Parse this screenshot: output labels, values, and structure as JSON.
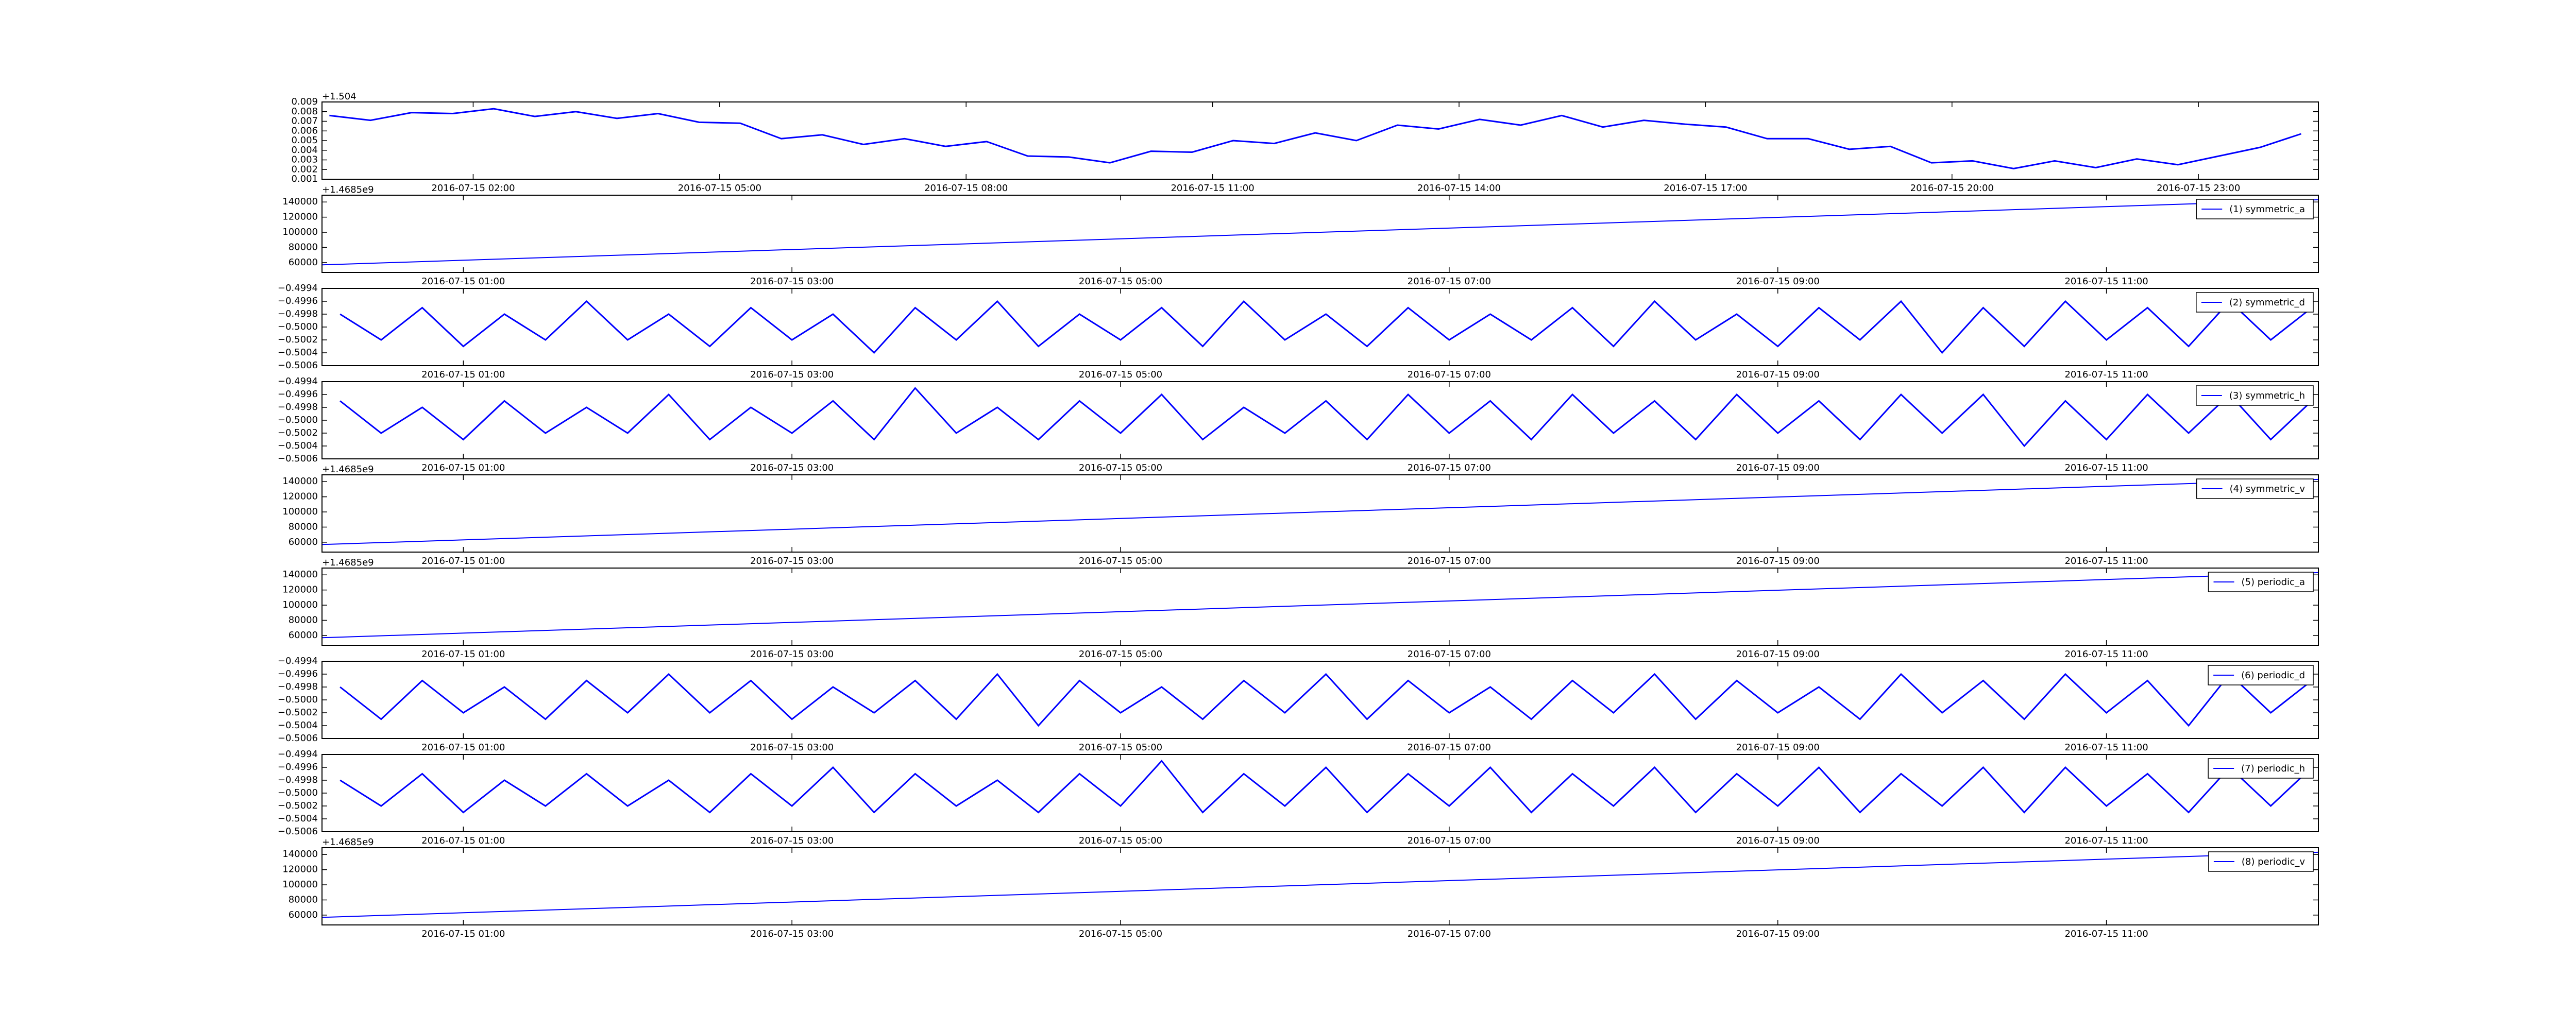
{
  "chart_data": [
    {
      "type": "line",
      "y_offset_label": "+1.504",
      "color": "#0000ff",
      "x": [
        0.25,
        0.75,
        1.25,
        1.75,
        2.25,
        2.75,
        3.25,
        3.75,
        4.25,
        4.75,
        5.25,
        5.75,
        6.25,
        6.75,
        7.25,
        7.75,
        8.25,
        8.75,
        9.25,
        9.75,
        10.25,
        10.75,
        11.25,
        11.75,
        12.25,
        12.75,
        13.25,
        13.75,
        14.25,
        14.75,
        15.25,
        15.75,
        16.25,
        16.75,
        17.25,
        17.75,
        18.25,
        18.75,
        19.25,
        19.75,
        20.25,
        20.75,
        21.25,
        21.75,
        22.25,
        22.75,
        23.25,
        23.75,
        24.25
      ],
      "values": [
        0.0076,
        0.0071,
        0.0079,
        0.0078,
        0.0083,
        0.0075,
        0.008,
        0.0073,
        0.0078,
        0.0069,
        0.0068,
        0.0052,
        0.0056,
        0.0046,
        0.0052,
        0.0044,
        0.0049,
        0.0034,
        0.0033,
        0.0027,
        0.0039,
        0.0038,
        0.005,
        0.0047,
        0.0058,
        0.005,
        0.0066,
        0.0062,
        0.0072,
        0.0066,
        0.0076,
        0.0064,
        0.0071,
        0.0067,
        0.0064,
        0.0052,
        0.0052,
        0.0041,
        0.0044,
        0.0027,
        0.0029,
        0.0021,
        0.0029,
        0.0022,
        0.0031,
        0.0025,
        0.0034,
        0.0043,
        0.0057
      ],
      "xlim": [
        0.16,
        24.46
      ],
      "ylim": [
        0.001,
        0.009
      ],
      "yticks": [
        0.001,
        0.002,
        0.003,
        0.004,
        0.005,
        0.006,
        0.007,
        0.008,
        0.009
      ],
      "xticks": [
        {
          "value": 2,
          "label": "2016-07-15 02:00"
        },
        {
          "value": 5,
          "label": "2016-07-15 05:00"
        },
        {
          "value": 8,
          "label": "2016-07-15 08:00"
        },
        {
          "value": 11,
          "label": "2016-07-15 11:00"
        },
        {
          "value": 14,
          "label": "2016-07-15 14:00"
        },
        {
          "value": 17,
          "label": "2016-07-15 17:00"
        },
        {
          "value": 20,
          "label": "2016-07-15 20:00"
        },
        {
          "value": 23,
          "label": "2016-07-15 23:00"
        }
      ]
    },
    {
      "type": "line",
      "y_offset_label": "+1.4685e9",
      "x": [
        0.14,
        12.29
      ],
      "series": [
        {
          "name": "(1) symmetric_a",
          "color": "#0000ff",
          "values": [
            57000,
            143000
          ]
        }
      ],
      "xlim": [
        0.14,
        12.29
      ],
      "ylim": [
        47000,
        149000
      ],
      "yticks": [
        60000,
        80000,
        100000,
        120000,
        140000
      ],
      "xticks": [
        {
          "value": 1,
          "label": "2016-07-15 01:00"
        },
        {
          "value": 3,
          "label": "2016-07-15 03:00"
        },
        {
          "value": 5,
          "label": "2016-07-15 05:00"
        },
        {
          "value": 7,
          "label": "2016-07-15 07:00"
        },
        {
          "value": 9,
          "label": "2016-07-15 09:00"
        },
        {
          "value": 11,
          "label": "2016-07-15 11:00"
        }
      ]
    },
    {
      "type": "line",
      "x": [
        0.25,
        0.5,
        0.75,
        1,
        1.25,
        1.5,
        1.75,
        2,
        2.25,
        2.5,
        2.75,
        3,
        3.25,
        3.5,
        3.75,
        4,
        4.25,
        4.5,
        4.75,
        5,
        5.25,
        5.5,
        5.75,
        6,
        6.25,
        6.5,
        6.75,
        7,
        7.25,
        7.5,
        7.75,
        8,
        8.25,
        8.5,
        8.75,
        9,
        9.25,
        9.5,
        9.75,
        10,
        10.25,
        10.5,
        10.75,
        11,
        11.25,
        11.5,
        11.75,
        12,
        12.25
      ],
      "series": [
        {
          "name": "(2) symmetric_d",
          "color": "#0000ff",
          "values": [
            -0.4998,
            -0.5002,
            -0.4997,
            -0.5003,
            -0.4998,
            -0.5002,
            -0.4996,
            -0.5002,
            -0.4998,
            -0.5003,
            -0.4997,
            -0.5002,
            -0.4998,
            -0.5004,
            -0.4997,
            -0.5002,
            -0.4996,
            -0.5003,
            -0.4998,
            -0.5002,
            -0.4997,
            -0.5003,
            -0.4996,
            -0.5002,
            -0.4998,
            -0.5003,
            -0.4997,
            -0.5002,
            -0.4998,
            -0.5002,
            -0.4997,
            -0.5003,
            -0.4996,
            -0.5002,
            -0.4998,
            -0.5003,
            -0.4997,
            -0.5002,
            -0.4996,
            -0.5004,
            -0.4997,
            -0.5003,
            -0.4996,
            -0.5002,
            -0.4997,
            -0.5003,
            -0.4996,
            -0.5002,
            -0.4997
          ]
        }
      ],
      "xlim": [
        0.14,
        12.29
      ],
      "ylim": [
        -0.5006,
        -0.4994
      ],
      "yticks": [
        {
          "value": -0.5006,
          "label": "−0.5006"
        },
        {
          "value": -0.5004,
          "label": "−0.5004"
        },
        {
          "value": -0.5002,
          "label": "−0.5002"
        },
        {
          "value": -0.5,
          "label": "−0.5000"
        },
        {
          "value": -0.4998,
          "label": "−0.4998"
        },
        {
          "value": -0.4996,
          "label": "−0.4996"
        },
        {
          "value": -0.4994,
          "label": "−0.4994"
        }
      ],
      "xticks": [
        {
          "value": 1,
          "label": "2016-07-15 01:00"
        },
        {
          "value": 3,
          "label": "2016-07-15 03:00"
        },
        {
          "value": 5,
          "label": "2016-07-15 05:00"
        },
        {
          "value": 7,
          "label": "2016-07-15 07:00"
        },
        {
          "value": 9,
          "label": "2016-07-15 09:00"
        },
        {
          "value": 11,
          "label": "2016-07-15 11:00"
        }
      ]
    },
    {
      "type": "line",
      "x": [
        0.25,
        0.5,
        0.75,
        1,
        1.25,
        1.5,
        1.75,
        2,
        2.25,
        2.5,
        2.75,
        3,
        3.25,
        3.5,
        3.75,
        4,
        4.25,
        4.5,
        4.75,
        5,
        5.25,
        5.5,
        5.75,
        6,
        6.25,
        6.5,
        6.75,
        7,
        7.25,
        7.5,
        7.75,
        8,
        8.25,
        8.5,
        8.75,
        9,
        9.25,
        9.5,
        9.75,
        10,
        10.25,
        10.5,
        10.75,
        11,
        11.25,
        11.5,
        11.75,
        12,
        12.25
      ],
      "series": [
        {
          "name": "(3) symmetric_h",
          "color": "#0000ff",
          "values": [
            -0.4997,
            -0.5002,
            -0.4998,
            -0.5003,
            -0.4997,
            -0.5002,
            -0.4998,
            -0.5002,
            -0.4996,
            -0.5003,
            -0.4998,
            -0.5002,
            -0.4997,
            -0.5003,
            -0.4995,
            -0.5002,
            -0.4998,
            -0.5003,
            -0.4997,
            -0.5002,
            -0.4996,
            -0.5003,
            -0.4998,
            -0.5002,
            -0.4997,
            -0.5003,
            -0.4996,
            -0.5002,
            -0.4997,
            -0.5003,
            -0.4996,
            -0.5002,
            -0.4997,
            -0.5003,
            -0.4996,
            -0.5002,
            -0.4997,
            -0.5003,
            -0.4996,
            -0.5002,
            -0.4996,
            -0.5004,
            -0.4997,
            -0.5003,
            -0.4996,
            -0.5002,
            -0.4996,
            -0.5003,
            -0.4997
          ]
        }
      ],
      "xlim": [
        0.14,
        12.29
      ],
      "ylim": [
        -0.5006,
        -0.4994
      ],
      "yticks": [
        {
          "value": -0.5006,
          "label": "−0.5006"
        },
        {
          "value": -0.5004,
          "label": "−0.5004"
        },
        {
          "value": -0.5002,
          "label": "−0.5002"
        },
        {
          "value": -0.5,
          "label": "−0.5000"
        },
        {
          "value": -0.4998,
          "label": "−0.4998"
        },
        {
          "value": -0.4996,
          "label": "−0.4996"
        },
        {
          "value": -0.4994,
          "label": "−0.4994"
        }
      ],
      "xticks": [
        {
          "value": 1,
          "label": "2016-07-15 01:00"
        },
        {
          "value": 3,
          "label": "2016-07-15 03:00"
        },
        {
          "value": 5,
          "label": "2016-07-15 05:00"
        },
        {
          "value": 7,
          "label": "2016-07-15 07:00"
        },
        {
          "value": 9,
          "label": "2016-07-15 09:00"
        },
        {
          "value": 11,
          "label": "2016-07-15 11:00"
        }
      ]
    },
    {
      "type": "line",
      "y_offset_label": "+1.4685e9",
      "x": [
        0.14,
        12.29
      ],
      "series": [
        {
          "name": "(4) symmetric_v",
          "color": "#0000ff",
          "values": [
            57000,
            143000
          ]
        }
      ],
      "xlim": [
        0.14,
        12.29
      ],
      "ylim": [
        47000,
        149000
      ],
      "yticks": [
        60000,
        80000,
        100000,
        120000,
        140000
      ],
      "xticks": [
        {
          "value": 1,
          "label": "2016-07-15 01:00"
        },
        {
          "value": 3,
          "label": "2016-07-15 03:00"
        },
        {
          "value": 5,
          "label": "2016-07-15 05:00"
        },
        {
          "value": 7,
          "label": "2016-07-15 07:00"
        },
        {
          "value": 9,
          "label": "2016-07-15 09:00"
        },
        {
          "value": 11,
          "label": "2016-07-15 11:00"
        }
      ]
    },
    {
      "type": "line",
      "y_offset_label": "+1.4685e9",
      "x": [
        0.14,
        12.29
      ],
      "series": [
        {
          "name": "(5) periodic_a",
          "color": "#0000ff",
          "values": [
            57000,
            143000
          ]
        }
      ],
      "xlim": [
        0.14,
        12.29
      ],
      "ylim": [
        47000,
        149000
      ],
      "yticks": [
        60000,
        80000,
        100000,
        120000,
        140000
      ],
      "xticks": [
        {
          "value": 1,
          "label": "2016-07-15 01:00"
        },
        {
          "value": 3,
          "label": "2016-07-15 03:00"
        },
        {
          "value": 5,
          "label": "2016-07-15 05:00"
        },
        {
          "value": 7,
          "label": "2016-07-15 07:00"
        },
        {
          "value": 9,
          "label": "2016-07-15 09:00"
        },
        {
          "value": 11,
          "label": "2016-07-15 11:00"
        }
      ]
    },
    {
      "type": "line",
      "x": [
        0.25,
        0.5,
        0.75,
        1,
        1.25,
        1.5,
        1.75,
        2,
        2.25,
        2.5,
        2.75,
        3,
        3.25,
        3.5,
        3.75,
        4,
        4.25,
        4.5,
        4.75,
        5,
        5.25,
        5.5,
        5.75,
        6,
        6.25,
        6.5,
        6.75,
        7,
        7.25,
        7.5,
        7.75,
        8,
        8.25,
        8.5,
        8.75,
        9,
        9.25,
        9.5,
        9.75,
        10,
        10.25,
        10.5,
        10.75,
        11,
        11.25,
        11.5,
        11.75,
        12,
        12.25
      ],
      "series": [
        {
          "name": "(6) periodic_d",
          "color": "#0000ff",
          "values": [
            -0.4998,
            -0.5003,
            -0.4997,
            -0.5002,
            -0.4998,
            -0.5003,
            -0.4997,
            -0.5002,
            -0.4996,
            -0.5002,
            -0.4997,
            -0.5003,
            -0.4998,
            -0.5002,
            -0.4997,
            -0.5003,
            -0.4996,
            -0.5004,
            -0.4997,
            -0.5002,
            -0.4998,
            -0.5003,
            -0.4997,
            -0.5002,
            -0.4996,
            -0.5003,
            -0.4997,
            -0.5002,
            -0.4998,
            -0.5003,
            -0.4997,
            -0.5002,
            -0.4996,
            -0.5003,
            -0.4997,
            -0.5002,
            -0.4998,
            -0.5003,
            -0.4996,
            -0.5002,
            -0.4997,
            -0.5003,
            -0.4996,
            -0.5002,
            -0.4997,
            -0.5004,
            -0.4996,
            -0.5002,
            -0.4997
          ]
        }
      ],
      "xlim": [
        0.14,
        12.29
      ],
      "ylim": [
        -0.5006,
        -0.4994
      ],
      "yticks": [
        {
          "value": -0.5006,
          "label": "−0.5006"
        },
        {
          "value": -0.5004,
          "label": "−0.5004"
        },
        {
          "value": -0.5002,
          "label": "−0.5002"
        },
        {
          "value": -0.5,
          "label": "−0.5000"
        },
        {
          "value": -0.4998,
          "label": "−0.4998"
        },
        {
          "value": -0.4996,
          "label": "−0.4996"
        },
        {
          "value": -0.4994,
          "label": "−0.4994"
        }
      ],
      "xticks": [
        {
          "value": 1,
          "label": "2016-07-15 01:00"
        },
        {
          "value": 3,
          "label": "2016-07-15 03:00"
        },
        {
          "value": 5,
          "label": "2016-07-15 05:00"
        },
        {
          "value": 7,
          "label": "2016-07-15 07:00"
        },
        {
          "value": 9,
          "label": "2016-07-15 09:00"
        },
        {
          "value": 11,
          "label": "2016-07-15 11:00"
        }
      ]
    },
    {
      "type": "line",
      "x": [
        0.25,
        0.5,
        0.75,
        1,
        1.25,
        1.5,
        1.75,
        2,
        2.25,
        2.5,
        2.75,
        3,
        3.25,
        3.5,
        3.75,
        4,
        4.25,
        4.5,
        4.75,
        5,
        5.25,
        5.5,
        5.75,
        6,
        6.25,
        6.5,
        6.75,
        7,
        7.25,
        7.5,
        7.75,
        8,
        8.25,
        8.5,
        8.75,
        9,
        9.25,
        9.5,
        9.75,
        10,
        10.25,
        10.5,
        10.75,
        11,
        11.25,
        11.5,
        11.75,
        12,
        12.25
      ],
      "series": [
        {
          "name": "(7) periodic_h",
          "color": "#0000ff",
          "values": [
            -0.4998,
            -0.5002,
            -0.4997,
            -0.5003,
            -0.4998,
            -0.5002,
            -0.4997,
            -0.5002,
            -0.4998,
            -0.5003,
            -0.4997,
            -0.5002,
            -0.4996,
            -0.5003,
            -0.4997,
            -0.5002,
            -0.4998,
            -0.5003,
            -0.4997,
            -0.5002,
            -0.4995,
            -0.5003,
            -0.4997,
            -0.5002,
            -0.4996,
            -0.5003,
            -0.4997,
            -0.5002,
            -0.4996,
            -0.5003,
            -0.4997,
            -0.5002,
            -0.4996,
            -0.5003,
            -0.4997,
            -0.5002,
            -0.4996,
            -0.5003,
            -0.4997,
            -0.5002,
            -0.4996,
            -0.5003,
            -0.4996,
            -0.5002,
            -0.4997,
            -0.5003,
            -0.4996,
            -0.5002,
            -0.4996
          ]
        }
      ],
      "xlim": [
        0.14,
        12.29
      ],
      "ylim": [
        -0.5006,
        -0.4994
      ],
      "yticks": [
        {
          "value": -0.5006,
          "label": "−0.5006"
        },
        {
          "value": -0.5004,
          "label": "−0.5004"
        },
        {
          "value": -0.5002,
          "label": "−0.5002"
        },
        {
          "value": -0.5,
          "label": "−0.5000"
        },
        {
          "value": -0.4998,
          "label": "−0.4998"
        },
        {
          "value": -0.4996,
          "label": "−0.4996"
        },
        {
          "value": -0.4994,
          "label": "−0.4994"
        }
      ],
      "xticks": [
        {
          "value": 1,
          "label": "2016-07-15 01:00"
        },
        {
          "value": 3,
          "label": "2016-07-15 03:00"
        },
        {
          "value": 5,
          "label": "2016-07-15 05:00"
        },
        {
          "value": 7,
          "label": "2016-07-15 07:00"
        },
        {
          "value": 9,
          "label": "2016-07-15 09:00"
        },
        {
          "value": 11,
          "label": "2016-07-15 11:00"
        }
      ]
    },
    {
      "type": "line",
      "y_offset_label": "+1.4685e9",
      "x": [
        0.14,
        12.29
      ],
      "series": [
        {
          "name": "(8) periodic_v",
          "color": "#0000ff",
          "values": [
            57000,
            143000
          ]
        }
      ],
      "xlim": [
        0.14,
        12.29
      ],
      "ylim": [
        47000,
        149000
      ],
      "yticks": [
        60000,
        80000,
        100000,
        120000,
        140000
      ],
      "xticks": [
        {
          "value": 1,
          "label": "2016-07-15 01:00"
        },
        {
          "value": 3,
          "label": "2016-07-15 03:00"
        },
        {
          "value": 5,
          "label": "2016-07-15 05:00"
        },
        {
          "value": 7,
          "label": "2016-07-15 07:00"
        },
        {
          "value": 9,
          "label": "2016-07-15 09:00"
        },
        {
          "value": 11,
          "label": "2016-07-15 11:00"
        }
      ]
    }
  ]
}
